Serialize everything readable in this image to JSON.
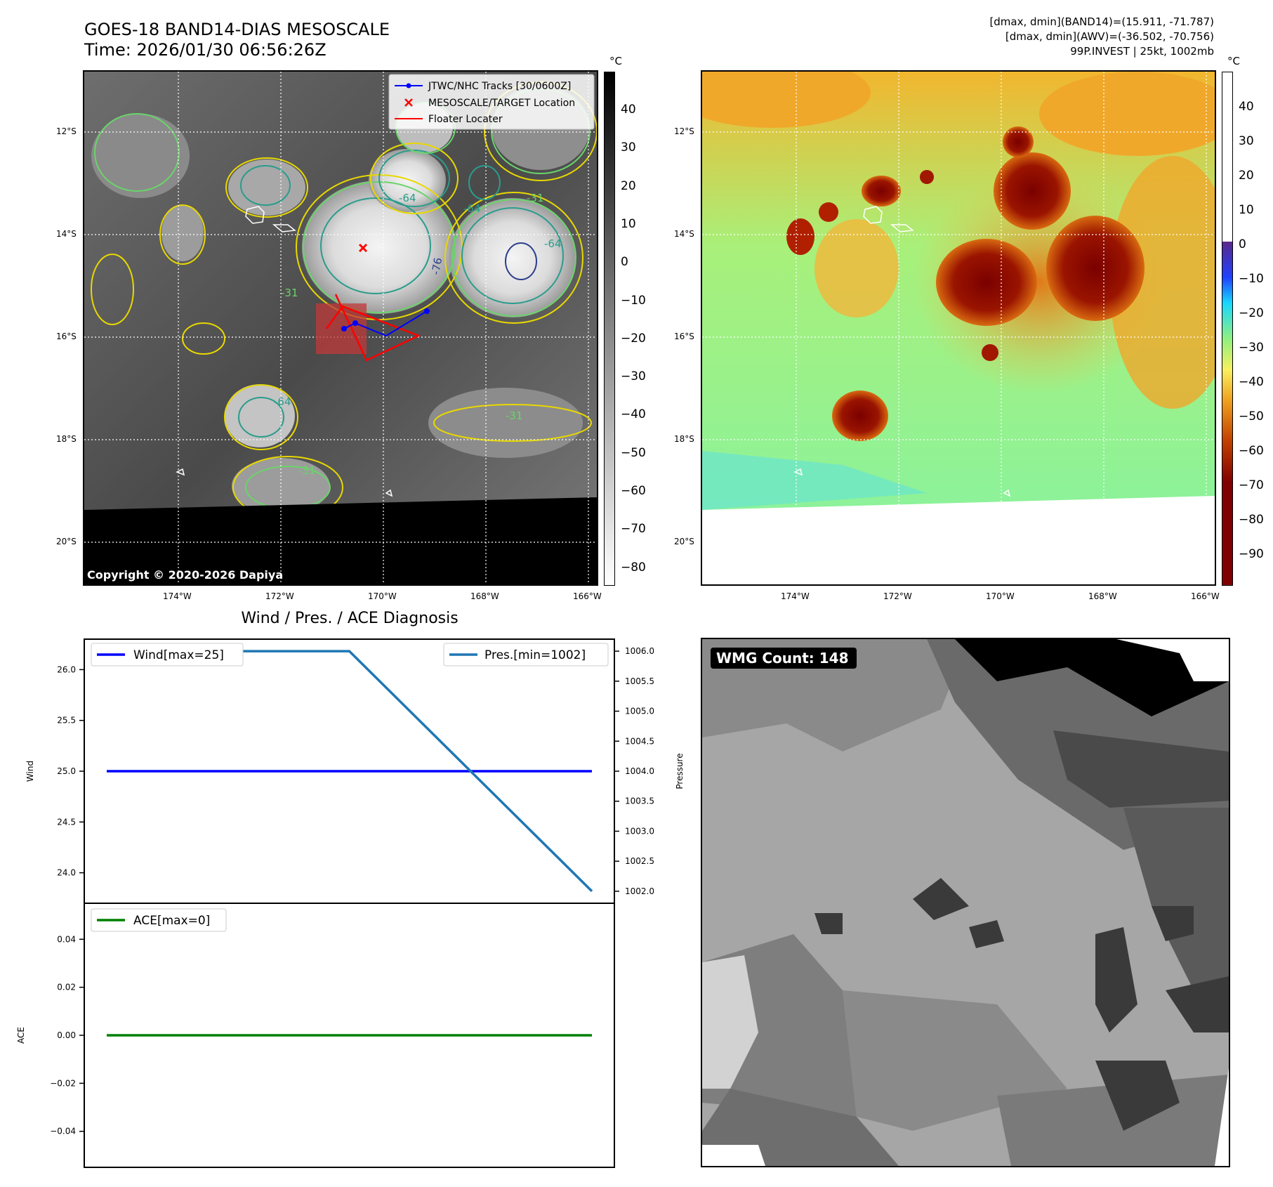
{
  "header": {
    "title_line1": "GOES-18 BAND14-DIAS MESOSCALE",
    "title_line2": "Time: 2026/01/30 06:56:26Z",
    "info_line1": "[dmax, dmin](BAND14)=(15.911, -71.787)",
    "info_line2": "[dmax, dmin](AWV)=(-36.502, -70.756)",
    "info_line3": "99P.INVEST | 25kt, 1002mb"
  },
  "map": {
    "lat_labels": [
      "12°S",
      "14°S",
      "16°S",
      "18°S",
      "20°S"
    ],
    "lon_labels": [
      "174°W",
      "172°W",
      "170°W",
      "168°W",
      "166°W"
    ],
    "copyright": "Copyright © 2020-2026 Dapiya",
    "contour_labels": [
      "-64",
      "-76",
      "-64",
      "-31",
      "-31",
      "-64",
      "-31",
      "-64",
      "-31"
    ],
    "legend": {
      "tracks": "JTWC/NHC Tracks [30/0600Z]",
      "target": "MESOSCALE/TARGET Location",
      "floater": "Floater Locater"
    }
  },
  "colorbar_ir": {
    "unit": "°C",
    "ticks": [
      "40",
      "30",
      "20",
      "10",
      "0",
      "−10",
      "−20",
      "−30",
      "−40",
      "−50",
      "−60",
      "−70",
      "−80"
    ]
  },
  "colorbar_awv": {
    "unit": "°C",
    "ticks": [
      "40",
      "30",
      "20",
      "10",
      "0",
      "−10",
      "−20",
      "−30",
      "−40",
      "−50",
      "−60",
      "−70",
      "−80",
      "−90"
    ]
  },
  "diagnosis": {
    "title": "Wind / Pres. / ACE Diagnosis",
    "wind_ylabel": "Wind",
    "pressure_ylabel": "Pressure",
    "ace_ylabel": "ACE",
    "wind_ticks": [
      "26.0",
      "25.5",
      "25.0",
      "24.5",
      "24.0"
    ],
    "pressure_ticks": [
      "1006.0",
      "1005.5",
      "1005.0",
      "1004.5",
      "1004.0",
      "1003.5",
      "1003.0",
      "1002.5",
      "1002.0"
    ],
    "ace_ticks": [
      "0.04",
      "0.02",
      "0.00",
      "−0.02",
      "−0.04"
    ],
    "legend_wind": "Wind[max=25]",
    "legend_pres": "Pres.[min=1002]",
    "legend_ace": "ACE[max=0]"
  },
  "wmg": {
    "label": "WMG Count: 148"
  },
  "chart_data": [
    {
      "type": "line",
      "x": [
        0,
        1,
        2
      ],
      "series": [
        {
          "name": "Wind[max=25]",
          "values": [
            25,
            25,
            25
          ]
        }
      ],
      "ylabel": "Wind",
      "ylim": [
        23.7,
        26.3
      ]
    },
    {
      "type": "line",
      "x": [
        0,
        1,
        2
      ],
      "series": [
        {
          "name": "Pres.[min=1002]",
          "values": [
            1006,
            1006,
            1002
          ]
        }
      ],
      "ylabel": "Pressure",
      "ylim": [
        1001.8,
        1006.2
      ]
    },
    {
      "type": "line",
      "x": [
        0,
        1,
        2
      ],
      "series": [
        {
          "name": "ACE[max=0]",
          "values": [
            0,
            0,
            0
          ]
        }
      ],
      "ylabel": "ACE",
      "ylim": [
        -0.055,
        0.055
      ]
    }
  ],
  "colors": {
    "wind": "#0000ff",
    "pressure": "#1f77b4",
    "ace": "#008000",
    "track": "#0000ff",
    "floater": "#ff0000"
  }
}
